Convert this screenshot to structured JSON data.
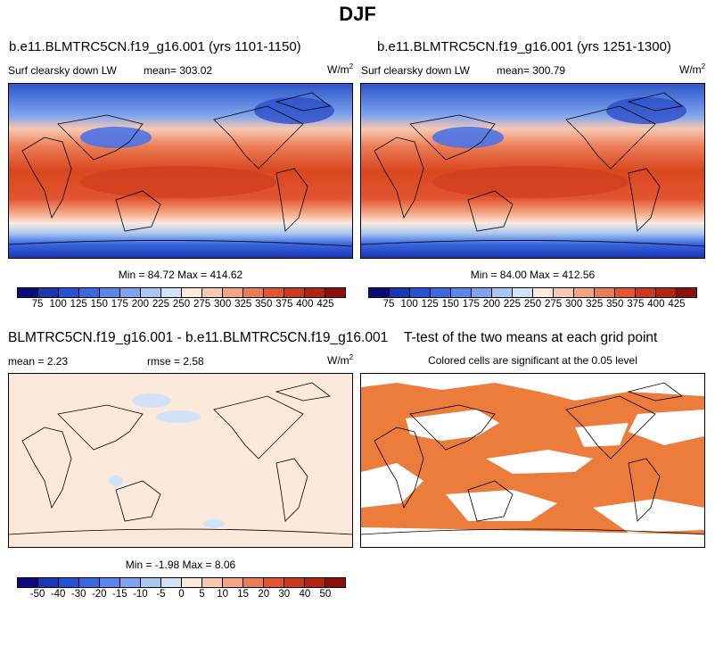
{
  "figure": {
    "title": "DJF"
  },
  "panels": [
    {
      "title": "b.e11.BLMTRC5CN.f19_g16.001 (yrs 1101-1150)",
      "left_label": "Surf clearsky down LW",
      "mean_label": "mean= 303.02",
      "units": "W/m",
      "units_sup": "2",
      "minmax": "Min = 84.72 Max = 414.62"
    },
    {
      "title": "b.e11.BLMTRC5CN.f19_g16.001 (yrs 1251-1300)",
      "left_label": "Surf clearsky down LW",
      "mean_label": "mean= 300.79",
      "units": "W/m",
      "units_sup": "2",
      "minmax": "Min = 84.00 Max = 412.56"
    },
    {
      "title": "BLMTRC5CN.f19_g16.001 - b.e11.BLMTRC5CN.f19_g16.001",
      "left_label": "mean =   2.23",
      "mean_label": "rmse =   2.58",
      "units": "W/m",
      "units_sup": "2",
      "minmax": "Min = -1.98 Max =  8.06"
    },
    {
      "title": "T-test of the two means at each grid point",
      "subtitle": "Colored cells are significant at the 0.05 level"
    }
  ],
  "colorbars": {
    "abs": {
      "colors": [
        "#0a0a78",
        "#1936b4",
        "#2450d2",
        "#3a68e0",
        "#5a86ee",
        "#7ea4f0",
        "#a8c6f4",
        "#d2e2f6",
        "#fbe9dc",
        "#f9c8b0",
        "#f3a482",
        "#ec7c56",
        "#e25531",
        "#cd3a1b",
        "#b12410",
        "#8c0f0a"
      ],
      "labels": [
        "75",
        "100",
        "125",
        "150",
        "175",
        "200",
        "225",
        "250",
        "275",
        "300",
        "325",
        "350",
        "375",
        "400",
        "425"
      ]
    },
    "diff": {
      "colors": [
        "#0a0a78",
        "#1936b4",
        "#2450d2",
        "#3a68e0",
        "#5a86ee",
        "#7ea4f0",
        "#a8c6f4",
        "#d2e2f6",
        "#fbe9dc",
        "#f9c8b0",
        "#f3a482",
        "#ec7c56",
        "#e25531",
        "#cd3a1b",
        "#b12410",
        "#8c0f0a"
      ],
      "labels": [
        "-50",
        "-40",
        "-30",
        "-20",
        "-15",
        "-10",
        "-5",
        "0",
        "5",
        "10",
        "15",
        "20",
        "30",
        "40",
        "50"
      ]
    }
  },
  "colors": {
    "significant": "#ec7c3c",
    "diff_background": "#fbe9dc"
  }
}
